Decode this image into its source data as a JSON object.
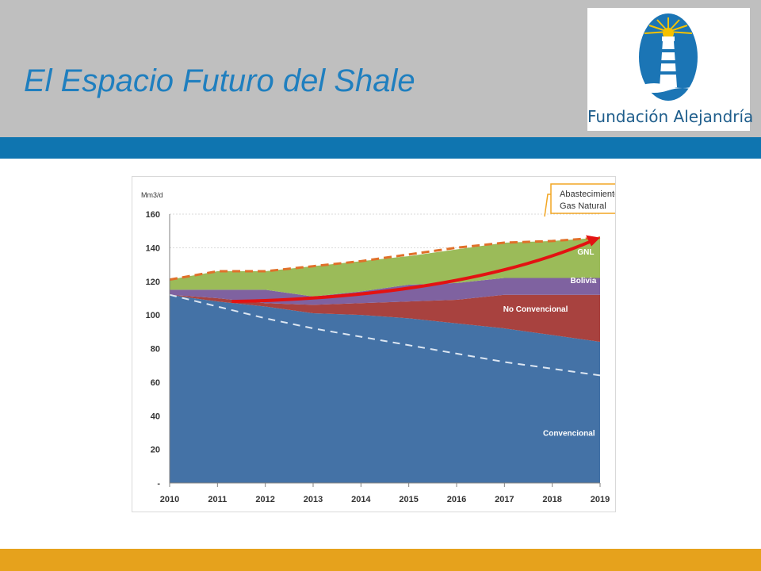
{
  "slide": {
    "title": "El Espacio Futuro del Shale",
    "logo_text": "Fundación Alejandría"
  },
  "colors": {
    "header_bg": "#bfbfbf",
    "title": "#1f7fbf",
    "band_blue": "#0f75b0",
    "band_gold": "#e6a21c",
    "convencional": "#4472a6",
    "no_convencional": "#a8423f",
    "bolivia": "#7f62a0",
    "gnl": "#9bbb59",
    "supply_line": "#e0702a",
    "arrow": "#e31212",
    "decline_line": "#dce6f2"
  },
  "chart_data": {
    "type": "area",
    "ylabel": "Mm3/d",
    "x": [
      2010,
      2011,
      2012,
      2013,
      2014,
      2015,
      2016,
      2017,
      2018,
      2019
    ],
    "ylim": [
      0,
      160
    ],
    "yticks": [
      0,
      20,
      40,
      60,
      80,
      100,
      120,
      140,
      160
    ],
    "ytick_labels": [
      "-",
      "20",
      "40",
      "60",
      "80",
      "100",
      "120",
      "140",
      "160"
    ],
    "stacked": true,
    "series": [
      {
        "name": "Convencional",
        "values": [
          112,
          108,
          105,
          101,
          100,
          98,
          95,
          92,
          88,
          84
        ]
      },
      {
        "name": "No Convencional",
        "values": [
          0,
          2,
          2,
          5,
          7,
          10,
          14,
          20,
          24,
          28
        ]
      },
      {
        "name": "Bolivia",
        "values": [
          3,
          5,
          8,
          5,
          7,
          10,
          10,
          10,
          10,
          10
        ]
      },
      {
        "name": "GNL",
        "values": [
          6,
          11,
          11,
          18,
          18,
          17,
          20,
          21,
          22,
          24
        ]
      }
    ],
    "supply_line": {
      "values": [
        121,
        126,
        126,
        129,
        132,
        136,
        140,
        143,
        144,
        146
      ]
    },
    "decline_line": {
      "values": [
        112,
        105,
        98,
        92,
        87,
        82,
        77,
        72,
        68,
        64
      ]
    },
    "arrow": {
      "start": [
        2011.3,
        108
      ],
      "end": [
        2019,
        146
      ]
    },
    "callout": "Abastecimiento de Gas Natural",
    "callout_lines": [
      "Abastecimiento de",
      "Gas Natural"
    ],
    "grid": true
  }
}
